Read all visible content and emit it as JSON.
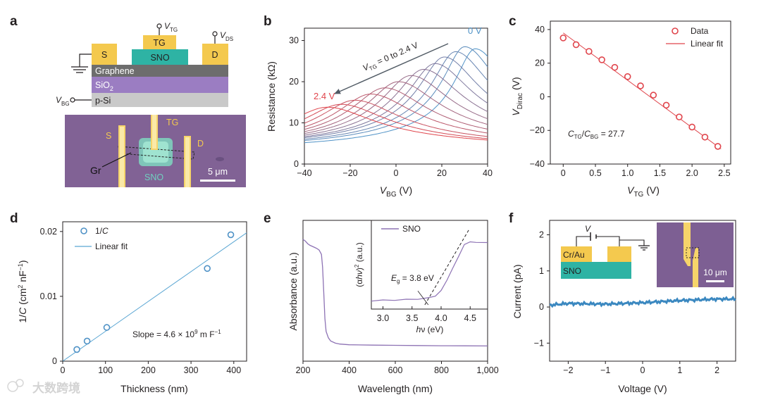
{
  "panel_labels": {
    "a": "a",
    "b": "b",
    "c": "c",
    "d": "d",
    "e": "e",
    "f": "f"
  },
  "colors": {
    "red": "#e0454c",
    "blue": "#4f92c6",
    "purple": "#8d72b4",
    "line_blue": "#5aa6d3",
    "trace_blue": "#3b88c0",
    "gold": "#f4c94e",
    "teal": "#2eb3a4",
    "graphene": "#6d6d6d",
    "sio2": "#9b7dc2",
    "psi": "#c9c9c9"
  },
  "panel_a": {
    "contacts": {
      "s": "S",
      "tg": "TG",
      "d": "D"
    },
    "layers": {
      "sno": "SNO",
      "graphene": "Graphene",
      "sio2_main": "SiO",
      "sio2_sub": "2",
      "psi": "p-Si"
    },
    "terminals": {
      "v": "V",
      "tg_sub": "TG",
      "ds_sub": "DS",
      "bg_sub": "BG"
    },
    "micrograph": {
      "s": "S",
      "tg": "TG",
      "d": "D",
      "gr": "Gr",
      "sno": "SNO",
      "scale": "5 μm"
    }
  },
  "chart_data": [
    {
      "panel": "b",
      "type": "line",
      "title": "",
      "xlabel_main": "V",
      "xlabel_sub": "BG",
      "xlabel_unit": " (V)",
      "ylabel": "Resistance (kΩ)",
      "xlim": [
        -40,
        40
      ],
      "ylim": [
        0,
        33
      ],
      "xticks": [
        "−40",
        "−20",
        "0",
        "20",
        "40"
      ],
      "yticks": [
        "0",
        "10",
        "20",
        "30"
      ],
      "series_note": "13 curves, V_TG stepped from 0 V (blue) to 2.4 V (red)",
      "series": [
        {
          "vtg": 0.0,
          "peak_vbg": 34.6,
          "peak_r": 28.0
        },
        {
          "vtg": 0.2,
          "peak_vbg": 30.0,
          "peak_r": 28.5
        },
        {
          "vtg": 0.4,
          "peak_vbg": 26.0,
          "peak_r": 27.3
        },
        {
          "vtg": 0.6,
          "peak_vbg": 21.0,
          "peak_r": 26.0
        },
        {
          "vtg": 0.8,
          "peak_vbg": 17.0,
          "peak_r": 24.4
        },
        {
          "vtg": 1.0,
          "peak_vbg": 12.0,
          "peak_r": 23.0
        },
        {
          "vtg": 1.2,
          "peak_vbg": 6.5,
          "peak_r": 21.5
        },
        {
          "vtg": 1.4,
          "peak_vbg": 1.0,
          "peak_r": 20.0
        },
        {
          "vtg": 1.6,
          "peak_vbg": -5.0,
          "peak_r": 18.5
        },
        {
          "vtg": 1.8,
          "peak_vbg": -11.0,
          "peak_r": 17.0
        },
        {
          "vtg": 2.0,
          "peak_vbg": -18.0,
          "peak_r": 15.5
        },
        {
          "vtg": 2.2,
          "peak_vbg": -24.0,
          "peak_r": 14.5
        },
        {
          "vtg": 2.4,
          "peak_vbg": -30.0,
          "peak_r": 13.8
        }
      ],
      "annotations": {
        "arrow_text_a": "V",
        "arrow_text_sub": "TG",
        "arrow_text_b": " = 0 to 2.4 V",
        "start_label": "0 V",
        "end_label": "2.4 V"
      }
    },
    {
      "panel": "c",
      "type": "scatter",
      "xlabel_main": "V",
      "xlabel_sub": "TG",
      "xlabel_unit": " (V)",
      "ylabel_main": "V",
      "ylabel_sub": "Dirac",
      "ylabel_unit": " (V)",
      "xlim": [
        -0.2,
        2.6
      ],
      "ylim": [
        -40,
        45
      ],
      "xticks": [
        "0",
        "0.5",
        "1.0",
        "1.5",
        "2.0",
        "2.5"
      ],
      "yticks": [
        "−40",
        "−20",
        "0",
        "20",
        "40"
      ],
      "x": [
        0.0,
        0.2,
        0.4,
        0.6,
        0.8,
        1.0,
        1.2,
        1.4,
        1.6,
        1.8,
        2.0,
        2.2,
        2.4
      ],
      "y": [
        35.0,
        31.0,
        27.0,
        22.0,
        17.5,
        12.0,
        6.5,
        1.0,
        -5.0,
        -12.0,
        -18.0,
        -24.0,
        -29.5
      ],
      "fit": {
        "x": [
          0.0,
          2.45
        ],
        "y": [
          38.0,
          -31.0
        ]
      },
      "legend": {
        "data": "Data",
        "fit": "Linear fit"
      },
      "annotation": {
        "c1": "C",
        "c1_sub": "TG",
        "slash": "/",
        "c2": "C",
        "c2_sub": "BG",
        "value": " = 27.7"
      }
    },
    {
      "panel": "d",
      "type": "scatter",
      "xlabel": "Thickness (nm)",
      "ylabel_a": "1/",
      "ylabel_c": "C",
      "ylabel_b": " (cm",
      "ylabel_sup1": "2",
      "ylabel_b2": " nF",
      "ylabel_sup2": "−1",
      "ylabel_end": ")",
      "xlim": [
        0,
        430
      ],
      "ylim": [
        0,
        0.0215
      ],
      "xticks": [
        "0",
        "100",
        "200",
        "300",
        "400"
      ],
      "yticks": [
        "0",
        "0.01",
        "0.02"
      ],
      "x": [
        33,
        57,
        103,
        338,
        393
      ],
      "y": [
        0.0018,
        0.0031,
        0.0052,
        0.0143,
        0.0195
      ],
      "fit": {
        "x": [
          0,
          430
        ],
        "y": [
          0.0,
          0.0198
        ]
      },
      "legend": {
        "data_a": "1/",
        "data_b": "C",
        "fit": "Linear fit"
      },
      "annotation": {
        "a": "Slope = 4.6 × 10",
        "sup1": "9",
        "b": " m F",
        "sup2": "−1"
      }
    },
    {
      "panel": "e",
      "type": "line",
      "xlabel": "Wavelength (nm)",
      "ylabel": "Absorbance (a.u.)",
      "xlim": [
        200,
        1000
      ],
      "xticks": [
        "200",
        "400",
        "600",
        "800",
        "1,000"
      ],
      "x": [
        200,
        210,
        220,
        230,
        240,
        250,
        260,
        270,
        280,
        285,
        290,
        295,
        300,
        310,
        320,
        340,
        360,
        400,
        500,
        600,
        700,
        800,
        900,
        1000
      ],
      "y": [
        1.0,
        0.985,
        0.96,
        0.945,
        0.935,
        0.925,
        0.915,
        0.9,
        0.86,
        0.74,
        0.5,
        0.26,
        0.14,
        0.08,
        0.05,
        0.03,
        0.022,
        0.015,
        0.012,
        0.01,
        0.008,
        0.006,
        0.005,
        0.004
      ],
      "inset": {
        "legend": "SNO",
        "xlabel_a": "h",
        "xlabel_b": "ν (eV)",
        "ylabel_a": "(α",
        "ylabel_b": "hν",
        "ylabel_c": ")",
        "ylabel_sup": "2",
        "ylabel_d": " (a.u.)",
        "xticks": [
          "3.0",
          "3.5",
          "4.0",
          "4.5"
        ],
        "xlim": [
          2.8,
          4.8
        ],
        "x": [
          2.8,
          3.0,
          3.2,
          3.4,
          3.6,
          3.8,
          3.9,
          4.0,
          4.1,
          4.2,
          4.3,
          4.4,
          4.5,
          4.6,
          4.8
        ],
        "y": [
          0.06,
          0.065,
          0.07,
          0.075,
          0.085,
          0.1,
          0.13,
          0.2,
          0.36,
          0.52,
          0.7,
          0.86,
          0.91,
          0.89,
          0.9
        ],
        "eg_a": "E",
        "eg_sub": "g",
        "eg_b": " = 3.8 eV"
      }
    },
    {
      "panel": "f",
      "type": "line",
      "xlabel": "Voltage (V)",
      "ylabel": "Current (pA)",
      "xlim": [
        -2.5,
        2.5
      ],
      "ylim": [
        -1.5,
        2.4
      ],
      "xticks": [
        "−2",
        "−1",
        "0",
        "1",
        "2"
      ],
      "yticks": [
        "−1",
        "0",
        "1",
        "2"
      ],
      "x": [
        -2.5,
        -2.0,
        -1.5,
        -1.0,
        -0.5,
        0.0,
        0.5,
        1.0,
        1.5,
        2.0,
        2.5
      ],
      "y": [
        0.05,
        0.1,
        0.09,
        0.08,
        0.1,
        0.12,
        0.15,
        0.18,
        0.2,
        0.22,
        0.22
      ],
      "inset": {
        "v": "V",
        "crau": "Cr/Au",
        "sno": "SNO",
        "scale": "10 μm"
      }
    }
  ],
  "watermark": "大数跨境"
}
